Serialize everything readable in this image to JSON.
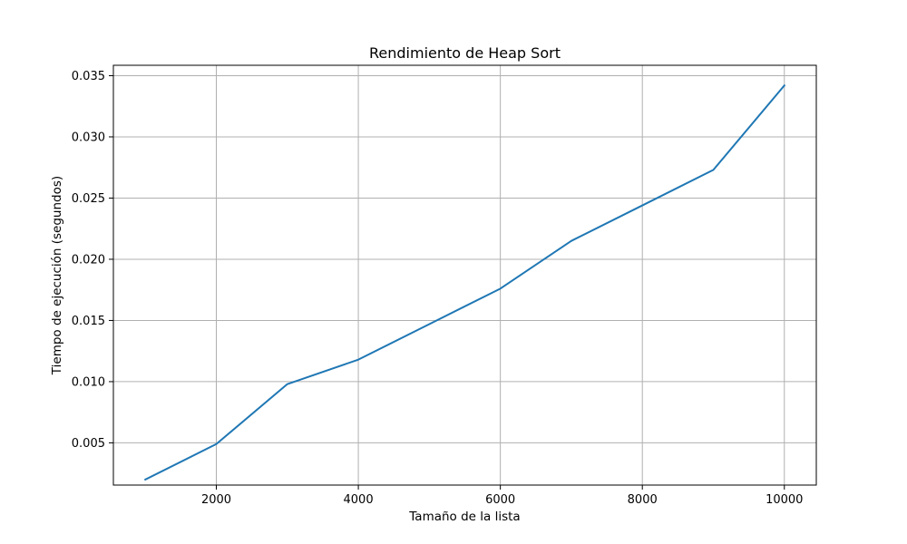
{
  "chart_data": {
    "type": "line",
    "title": "Rendimiento de Heap Sort",
    "xlabel": "Tamaño de la lista",
    "ylabel": "Tiempo de ejecución (segundos)",
    "xlim": [
      550,
      10450
    ],
    "ylim": [
      0.00155,
      0.03585
    ],
    "x_ticks": [
      2000,
      4000,
      6000,
      8000,
      10000
    ],
    "x_tick_labels": [
      "2000",
      "4000",
      "6000",
      "8000",
      "10000"
    ],
    "y_ticks": [
      0.005,
      0.01,
      0.015,
      0.02,
      0.025,
      0.03,
      0.035
    ],
    "y_tick_labels": [
      "0.005",
      "0.010",
      "0.015",
      "0.020",
      "0.025",
      "0.030",
      "0.035"
    ],
    "grid": true,
    "series": [
      {
        "color": "#1f77b4",
        "x": [
          1000,
          2000,
          3000,
          4000,
          5000,
          6000,
          7000,
          8000,
          9000,
          10000
        ],
        "y": [
          0.002,
          0.0049,
          0.0098,
          0.0118,
          0.0147,
          0.0176,
          0.0215,
          0.0244,
          0.0273,
          0.0342
        ]
      }
    ]
  }
}
